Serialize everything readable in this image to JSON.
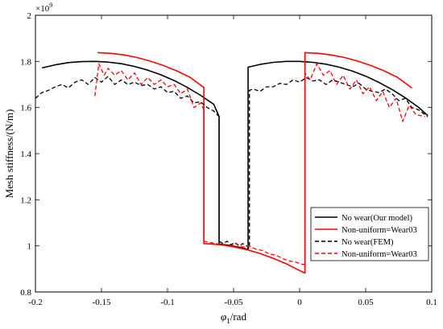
{
  "chart_data": {
    "type": "line",
    "title": "",
    "xlabel": "φ1/rad",
    "ylabel": "Mesh stiffness/(N/m)",
    "y_exponent_label": "×10",
    "y_exponent_power": "9",
    "xlim": [
      -0.2,
      0.1
    ],
    "ylim": [
      0.8,
      2.0
    ],
    "x_ticks": [
      -0.2,
      -0.15,
      -0.1,
      -0.05,
      0,
      0.05,
      0.1
    ],
    "x_tick_labels": [
      "-0.2",
      "-0.15",
      "-0.1",
      "-0.05",
      "0",
      "0.05",
      "0.1"
    ],
    "y_ticks": [
      0.8,
      1.0,
      1.2,
      1.4,
      1.6,
      1.8,
      2.0
    ],
    "y_tick_labels": [
      "0.8",
      "1",
      "1.2",
      "1.4",
      "1.6",
      "1.8",
      "2"
    ],
    "grid": false,
    "legend_position": "bottom-right",
    "series": [
      {
        "name": "No wear(Our model)",
        "color": "#000000",
        "dash": "solid",
        "x": [
          -0.195,
          -0.185,
          -0.175,
          -0.165,
          -0.155,
          -0.145,
          -0.135,
          -0.125,
          -0.115,
          -0.105,
          -0.095,
          -0.085,
          -0.075,
          -0.065,
          -0.061,
          -0.061,
          -0.055,
          -0.05,
          -0.045,
          -0.039,
          -0.039,
          -0.03,
          -0.02,
          -0.01,
          0.0,
          0.01,
          0.02,
          0.03,
          0.04,
          0.05,
          0.06,
          0.07,
          0.08,
          0.09,
          0.097
        ],
        "y": [
          1.772,
          1.785,
          1.795,
          1.799,
          1.8,
          1.797,
          1.79,
          1.778,
          1.762,
          1.742,
          1.717,
          1.687,
          1.653,
          1.614,
          1.561,
          1.008,
          1.004,
          0.999,
          0.993,
          0.985,
          1.775,
          1.787,
          1.796,
          1.8,
          1.8,
          1.796,
          1.788,
          1.775,
          1.758,
          1.736,
          1.709,
          1.678,
          1.642,
          1.601,
          1.565
        ]
      },
      {
        "name": "Non-uniform=Wear03",
        "color": "#ff0000",
        "dash": "solid",
        "x": [
          -0.153,
          -0.143,
          -0.133,
          -0.123,
          -0.113,
          -0.103,
          -0.093,
          -0.083,
          -0.0725,
          -0.0725,
          -0.06,
          -0.05,
          -0.04,
          -0.03,
          -0.02,
          -0.01,
          0.0,
          0.004,
          0.004,
          0.014,
          0.024,
          0.034,
          0.044,
          0.054,
          0.064,
          0.074,
          0.085
        ],
        "y": [
          1.838,
          1.835,
          1.828,
          1.817,
          1.801,
          1.782,
          1.759,
          1.731,
          1.687,
          1.01,
          1.005,
          0.996,
          0.984,
          0.967,
          0.946,
          0.922,
          0.893,
          0.882,
          1.838,
          1.835,
          1.828,
          1.817,
          1.801,
          1.782,
          1.759,
          1.731,
          1.685
        ]
      },
      {
        "name": "No wear(FEM)",
        "color": "#000000",
        "dash": "dashed",
        "x": [
          -0.2,
          -0.195,
          -0.19,
          -0.185,
          -0.18,
          -0.175,
          -0.17,
          -0.165,
          -0.16,
          -0.155,
          -0.15,
          -0.145,
          -0.14,
          -0.135,
          -0.13,
          -0.125,
          -0.12,
          -0.115,
          -0.11,
          -0.105,
          -0.1,
          -0.095,
          -0.09,
          -0.085,
          -0.08,
          -0.075,
          -0.07,
          -0.065,
          -0.061,
          -0.061,
          -0.058,
          -0.055,
          -0.052,
          -0.049,
          -0.046,
          -0.043,
          -0.04,
          -0.038,
          -0.038,
          -0.035,
          -0.03,
          -0.025,
          -0.02,
          -0.015,
          -0.01,
          -0.005,
          0.0,
          0.005,
          0.01,
          0.015,
          0.02,
          0.025,
          0.03,
          0.035,
          0.04,
          0.045,
          0.05,
          0.055,
          0.06,
          0.065,
          0.07,
          0.075,
          0.08,
          0.085,
          0.09,
          0.097
        ],
        "y": [
          1.64,
          1.665,
          1.675,
          1.69,
          1.7,
          1.685,
          1.71,
          1.72,
          1.7,
          1.73,
          1.71,
          1.735,
          1.7,
          1.72,
          1.7,
          1.71,
          1.695,
          1.7,
          1.68,
          1.69,
          1.665,
          1.67,
          1.64,
          1.65,
          1.62,
          1.625,
          1.6,
          1.585,
          1.56,
          1.02,
          1.01,
          1.02,
          1.005,
          1.015,
          1.0,
          1.01,
          1.0,
          0.99,
          1.675,
          1.68,
          1.67,
          1.69,
          1.69,
          1.705,
          1.7,
          1.72,
          1.71,
          1.73,
          1.715,
          1.72,
          1.7,
          1.72,
          1.71,
          1.7,
          1.69,
          1.705,
          1.68,
          1.67,
          1.665,
          1.68,
          1.66,
          1.63,
          1.64,
          1.6,
          1.59,
          1.56
        ]
      },
      {
        "name": "Non-uniform=Wear03",
        "color": "#ff0000",
        "dash": "dashed",
        "x": [
          -0.155,
          -0.152,
          -0.148,
          -0.145,
          -0.14,
          -0.135,
          -0.13,
          -0.125,
          -0.12,
          -0.115,
          -0.11,
          -0.105,
          -0.1,
          -0.095,
          -0.09,
          -0.085,
          -0.08,
          -0.075,
          -0.0725,
          -0.0725,
          -0.068,
          -0.063,
          -0.058,
          -0.053,
          -0.048,
          -0.043,
          -0.038,
          -0.033,
          -0.028,
          -0.023,
          -0.018,
          -0.013,
          -0.008,
          -0.003,
          0.002,
          0.004,
          0.004,
          0.008,
          0.013,
          0.018,
          0.023,
          0.028,
          0.033,
          0.038,
          0.043,
          0.048,
          0.053,
          0.058,
          0.063,
          0.068,
          0.073,
          0.078,
          0.083,
          0.088,
          0.095
        ],
        "y": [
          1.65,
          1.79,
          1.74,
          1.77,
          1.74,
          1.76,
          1.72,
          1.75,
          1.7,
          1.73,
          1.7,
          1.72,
          1.69,
          1.7,
          1.66,
          1.68,
          1.6,
          1.62,
          1.59,
          1.02,
          1.015,
          1.01,
          1.005,
          1.0,
          1.01,
          0.995,
          1.0,
          0.985,
          0.98,
          0.965,
          0.96,
          0.945,
          0.935,
          0.93,
          0.92,
          0.92,
          1.75,
          1.72,
          1.79,
          1.74,
          1.76,
          1.7,
          1.74,
          1.68,
          1.72,
          1.66,
          1.69,
          1.63,
          1.67,
          1.6,
          1.64,
          1.54,
          1.61,
          1.57,
          1.56
        ]
      }
    ]
  }
}
